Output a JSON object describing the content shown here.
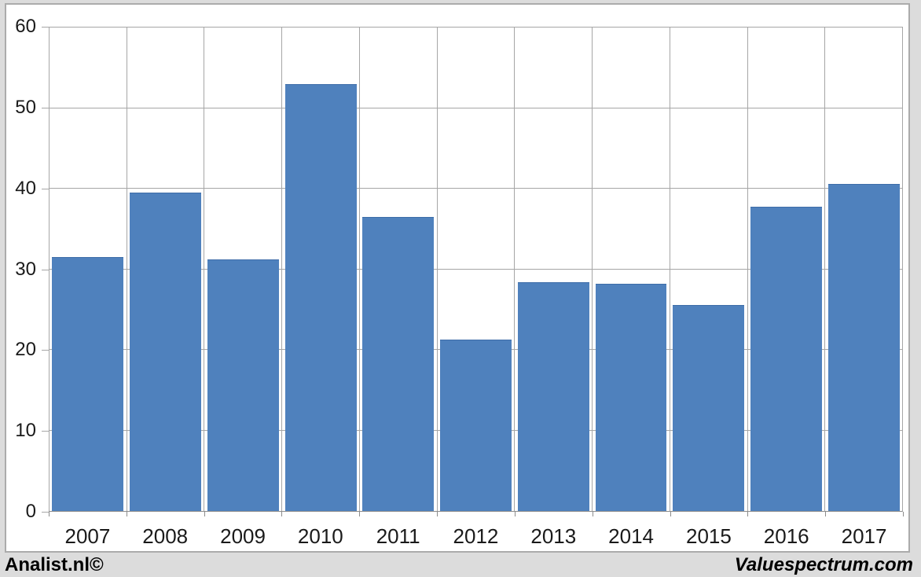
{
  "branding": {
    "left": "Analist.nl©",
    "right": "Valuespectrum.com"
  },
  "chart_data": {
    "type": "bar",
    "title": "",
    "xlabel": "",
    "ylabel": "",
    "categories": [
      "2007",
      "2008",
      "2009",
      "2010",
      "2011",
      "2012",
      "2013",
      "2014",
      "2015",
      "2016",
      "2017"
    ],
    "values": [
      31.5,
      39.5,
      31.2,
      53.0,
      36.5,
      21.3,
      28.4,
      28.2,
      25.6,
      37.8,
      40.6
    ],
    "ylim": [
      0,
      60
    ],
    "yticks": [
      0,
      10,
      20,
      30,
      40,
      50,
      60
    ],
    "grid": true,
    "legend": false,
    "colors": {
      "bar": "#4F81BD",
      "bar_edge": "#3E6DA8",
      "gridline": "#A6A6A6",
      "frame_border": "#ABABAB",
      "page_background": "#DCDCDC",
      "plot_background": "#FFFFFF",
      "text": "#1A1A1A"
    }
  }
}
